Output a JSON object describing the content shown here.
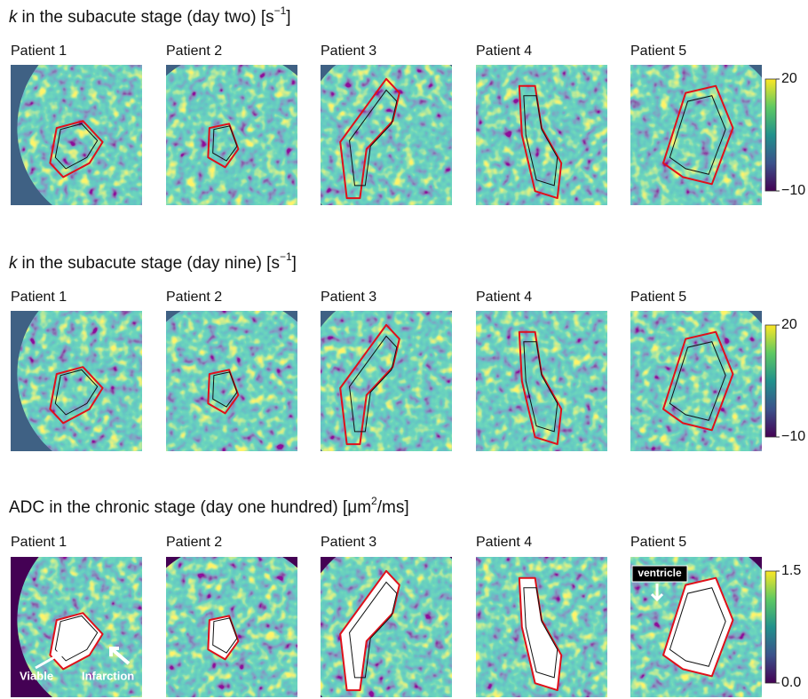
{
  "rows": [
    {
      "title": {
        "var": "k",
        "text": "in the subacute stage (day two) [s",
        "sup": "−1",
        "close": "]"
      },
      "panels": [
        "Patient 1",
        "Patient 2",
        "Patient 3",
        "Patient 4",
        "Patient 5"
      ],
      "colorbar": {
        "ticks": [
          20,
          {
            "value": -10,
            "label": "−10"
          }
        ]
      }
    },
    {
      "title": {
        "var": "k",
        "text": "in the subacute stage (day nine) [s",
        "sup": "−1",
        "close": "]"
      },
      "panels": [
        "Patient 1",
        "Patient 2",
        "Patient 3",
        "Patient 4",
        "Patient 5"
      ],
      "colorbar": {
        "ticks": [
          20,
          {
            "value": -10,
            "label": "−10"
          }
        ]
      }
    },
    {
      "title": {
        "text": "ADC in the chronic stage (day one hundred) [μm",
        "sup": "2",
        "close": "/ms]"
      },
      "panels": [
        "Patient 1",
        "Patient 2",
        "Patient 3",
        "Patient 4",
        "Patient 5"
      ],
      "colorbar": {
        "ticks": [
          1.5,
          {
            "value": 0,
            "label": "0.0"
          }
        ]
      },
      "annotations": {
        "viable": "Viable",
        "infarction": "Infarction",
        "ventricle": "ventricle"
      }
    }
  ]
}
